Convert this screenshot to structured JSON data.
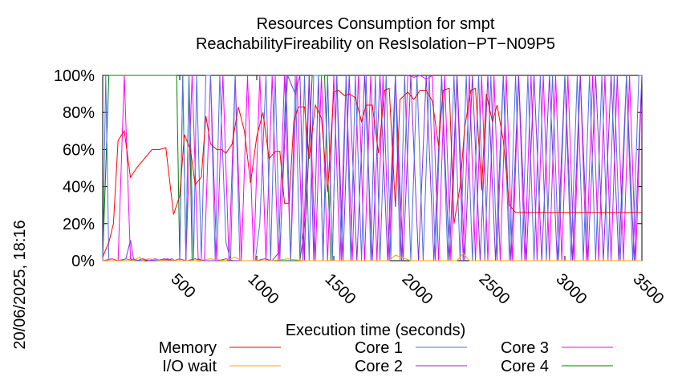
{
  "chart_data": {
    "type": "line",
    "title": "Resources Consumption for smpt",
    "subtitle": "ReachabilityFireability on ResIsolation−PT−N09P5",
    "xlabel": "Execution time (seconds)",
    "ylabel": "",
    "side_label": "20/06/2025, 18:16",
    "xlim": [
      0,
      3500
    ],
    "ylim": [
      0,
      100
    ],
    "x_ticks": [
      {
        "value": 500,
        "label": "500"
      },
      {
        "value": 1000,
        "label": "1000"
      },
      {
        "value": 1500,
        "label": "1500"
      },
      {
        "value": 2000,
        "label": "2000"
      },
      {
        "value": 2500,
        "label": "2500"
      },
      {
        "value": 3000,
        "label": "3000"
      },
      {
        "value": 3500,
        "label": "3500"
      }
    ],
    "y_ticks": [
      {
        "value": 0,
        "label": "0%"
      },
      {
        "value": 20,
        "label": "20%"
      },
      {
        "value": 40,
        "label": "40%"
      },
      {
        "value": 60,
        "label": "60%"
      },
      {
        "value": 80,
        "label": "80%"
      },
      {
        "value": 100,
        "label": "100%"
      }
    ],
    "legend_placement": "bottom",
    "grid": false,
    "series": [
      {
        "name": "Memory",
        "color": "#ff0000",
        "x": [
          0,
          40,
          70,
          100,
          140,
          180,
          220,
          270,
          320,
          370,
          410,
          460,
          500,
          530,
          570,
          600,
          640,
          670,
          700,
          740,
          770,
          800,
          840,
          880,
          920,
          960,
          1000,
          1040,
          1080,
          1120,
          1150,
          1180,
          1210,
          1240,
          1270,
          1310,
          1340,
          1380,
          1420,
          1460,
          1500,
          1530,
          1570,
          1600,
          1640,
          1680,
          1710,
          1750,
          1790,
          1830,
          1860,
          1900,
          1930,
          1980,
          2020,
          2060,
          2100,
          2140,
          2180,
          2210,
          2250,
          2280,
          2320,
          2350,
          2390,
          2420,
          2460,
          2490,
          2530,
          2560,
          2600,
          2640,
          2680,
          2710,
          2750,
          2780,
          2820,
          2850,
          2890,
          2930,
          2960,
          2990,
          3020,
          3060,
          3090,
          3130,
          3160,
          3200,
          3230,
          3270,
          3300,
          3340,
          3380,
          3420,
          3460,
          3500
        ],
        "values": [
          2,
          10,
          20,
          65,
          70,
          45,
          50,
          55,
          60,
          60,
          61,
          25,
          35,
          68,
          60,
          41,
          45,
          78,
          63,
          60,
          60,
          58,
          63,
          83,
          70,
          42,
          67,
          80,
          55,
          59,
          59,
          31,
          31,
          75,
          83,
          83,
          55,
          84,
          77,
          37,
          91,
          92,
          89,
          90,
          88,
          75,
          84,
          84,
          58,
          92,
          93,
          29,
          87,
          91,
          87,
          92,
          92,
          86,
          62,
          92,
          93,
          20,
          40,
          72,
          92,
          93,
          38,
          90,
          75,
          84,
          65,
          30,
          26,
          26,
          26,
          26,
          26,
          26,
          26,
          26,
          26,
          26,
          26,
          26,
          26,
          26,
          26,
          26,
          26,
          26,
          26,
          26,
          26,
          26,
          26,
          26
        ]
      },
      {
        "name": "I/O wait",
        "color": "#ffa500",
        "x": [
          0,
          100,
          200,
          240,
          260,
          300,
          400,
          500,
          600,
          700,
          800,
          860,
          900,
          1000,
          1100,
          1200,
          1300,
          1400,
          1500,
          1600,
          1700,
          1800,
          1860,
          1900,
          2000,
          2100,
          2200,
          2300,
          2340,
          2380,
          2400,
          2500,
          2600,
          2700,
          2800,
          2900,
          3000,
          3100,
          3200,
          3300,
          3400,
          3500
        ],
        "values": [
          0,
          0,
          0,
          2,
          0,
          1,
          0,
          0,
          0,
          1,
          0,
          2,
          0,
          0,
          0,
          1,
          0,
          0,
          0,
          0,
          0,
          0,
          0,
          3,
          0,
          0,
          0,
          0,
          4,
          0,
          0,
          0,
          0,
          0,
          0,
          0,
          0,
          0,
          0,
          0,
          0,
          0
        ]
      },
      {
        "name": "Core 1",
        "color": "#4f6fdf",
        "x": [
          0,
          20,
          40,
          60,
          90,
          120,
          150,
          200,
          250,
          300,
          350,
          400,
          450,
          470,
          500,
          520,
          540,
          560,
          590,
          610,
          640,
          670,
          700,
          730,
          760,
          800,
          830,
          860,
          890,
          920,
          960,
          990,
          1020,
          1060,
          1090,
          1120,
          1150,
          1190,
          1220,
          1250,
          1280,
          1310,
          1340,
          1370,
          1400,
          1430,
          1460,
          1490,
          1520,
          1550,
          1580,
          1610,
          1640,
          1680,
          1710,
          1740,
          1770,
          1800,
          1840,
          1870,
          1900,
          1930,
          1960,
          2000,
          2040,
          2080,
          2120,
          2160,
          2200,
          2240,
          2280,
          2320,
          2360,
          2400,
          2440,
          2480,
          2520,
          2560,
          2600,
          2640,
          2680,
          2720,
          2760,
          2800,
          2840,
          2880,
          2920,
          2960,
          3000,
          3040,
          3080,
          3120,
          3160,
          3200,
          3240,
          3280,
          3320,
          3360,
          3400,
          3440,
          3480,
          3500
        ],
        "values": [
          0,
          100,
          0,
          0,
          0,
          0,
          1,
          0,
          0,
          1,
          0,
          0,
          1,
          0,
          0,
          100,
          0,
          100,
          0,
          100,
          0,
          100,
          100,
          0,
          100,
          10,
          0,
          100,
          0,
          0,
          0,
          0,
          20,
          100,
          0,
          100,
          0,
          100,
          0,
          100,
          0,
          100,
          0,
          100,
          100,
          0,
          100,
          0,
          100,
          0,
          100,
          0,
          100,
          0,
          100,
          0,
          100,
          0,
          100,
          0,
          100,
          0,
          100,
          0,
          100,
          0,
          100,
          0,
          100,
          0,
          100,
          0,
          100,
          0,
          100,
          0,
          100,
          0,
          100,
          0,
          100,
          0,
          100,
          0,
          100,
          0,
          100,
          0,
          100,
          0,
          100,
          0,
          100,
          0,
          100,
          0,
          100,
          0,
          100,
          0,
          100,
          100
        ]
      },
      {
        "name": "Core 2",
        "color": "#8a2be2",
        "x": [
          0,
          50,
          100,
          150,
          180,
          200,
          230,
          260,
          300,
          350,
          400,
          450,
          500,
          550,
          600,
          650,
          700,
          750,
          800,
          850,
          900,
          950,
          1000,
          1050,
          1100,
          1150,
          1200,
          1250,
          1280,
          1310,
          1340,
          1370,
          1400,
          1430,
          1460,
          1490,
          1520,
          1560,
          1600,
          1650,
          1700,
          1750,
          1800,
          1850,
          1900,
          1950,
          2000,
          2050,
          2100,
          2150,
          2200,
          2250,
          2300,
          2350,
          2400,
          2450,
          2500,
          2550,
          2600,
          2650,
          2700,
          2750,
          2800,
          2850,
          2900,
          2950,
          3000,
          3050,
          3100,
          3150,
          3200,
          3250,
          3300,
          3350,
          3400,
          3450,
          3500
        ],
        "values": [
          0,
          0,
          0,
          1,
          11,
          1,
          0,
          1,
          0,
          0,
          1,
          0,
          0,
          0,
          1,
          0,
          0,
          0,
          1,
          0,
          0,
          0,
          0,
          1,
          0,
          5,
          100,
          90,
          100,
          0,
          100,
          0,
          100,
          0,
          100,
          0,
          100,
          0,
          100,
          0,
          100,
          0,
          100,
          0,
          100,
          0,
          100,
          0,
          100,
          0,
          100,
          0,
          100,
          0,
          100,
          0,
          100,
          0,
          100,
          0,
          100,
          0,
          100,
          0,
          100,
          0,
          100,
          0,
          100,
          0,
          100,
          0,
          100,
          0,
          100,
          0,
          100
        ]
      },
      {
        "name": "Core 3",
        "color": "#ff00ff",
        "x": [
          0,
          60,
          100,
          140,
          180,
          220,
          260,
          300,
          340,
          380,
          420,
          460,
          500,
          540,
          580,
          620,
          660,
          700,
          740,
          780,
          820,
          860,
          900,
          940,
          980,
          1020,
          1060,
          1100,
          1140,
          1180,
          1220,
          1260,
          1300,
          1340,
          1380,
          1420,
          1460,
          1500,
          1540,
          1580,
          1620,
          1660,
          1700,
          1740,
          1780,
          1820,
          1860,
          1900,
          1940,
          1980,
          2020,
          2060,
          2100,
          2140,
          2180,
          2220,
          2260,
          2300,
          2340,
          2380,
          2420,
          2460,
          2500,
          2540,
          2580,
          2620,
          2660,
          2700,
          2740,
          2780,
          2820,
          2860,
          2900,
          2940,
          2980,
          3020,
          3060,
          3100,
          3140,
          3180,
          3220,
          3260,
          3300,
          3340,
          3380,
          3420,
          3460,
          3500
        ],
        "values": [
          0,
          1,
          0,
          100,
          1,
          0,
          1,
          0,
          1,
          0,
          1,
          0,
          1,
          0,
          100,
          1,
          0,
          100,
          0,
          100,
          0,
          100,
          0,
          100,
          0,
          100,
          0,
          100,
          0,
          100,
          0,
          100,
          0,
          100,
          0,
          100,
          0,
          100,
          0,
          100,
          0,
          100,
          0,
          100,
          0,
          100,
          0,
          100,
          0,
          100,
          99,
          100,
          98,
          100,
          0,
          100,
          0,
          100,
          0,
          100,
          0,
          100,
          0,
          100,
          0,
          100,
          0,
          100,
          0,
          100,
          0,
          100,
          0,
          100,
          0,
          100,
          0,
          100,
          0,
          100,
          0,
          100,
          0,
          100,
          0,
          100,
          0,
          100
        ]
      },
      {
        "name": "Core 4",
        "color": "#008000",
        "x": [
          0,
          40,
          80,
          120,
          160,
          200,
          250,
          300,
          350,
          400,
          450,
          480,
          500,
          520,
          540,
          560,
          580,
          600,
          640,
          680,
          720,
          760,
          800,
          840,
          880,
          920,
          960,
          1000,
          1040,
          1080,
          1120,
          1160,
          1200,
          1240,
          1280,
          1320,
          1360,
          1400,
          1440,
          1480,
          1500
        ],
        "values": [
          0,
          100,
          100,
          100,
          100,
          100,
          100,
          100,
          100,
          100,
          100,
          100,
          0,
          100,
          0,
          100,
          0,
          0,
          0,
          0,
          0,
          0,
          0,
          0,
          0,
          0,
          0,
          0,
          0,
          0,
          0,
          0,
          0,
          0,
          0,
          25,
          100,
          100,
          100,
          0,
          0
        ]
      }
    ]
  }
}
